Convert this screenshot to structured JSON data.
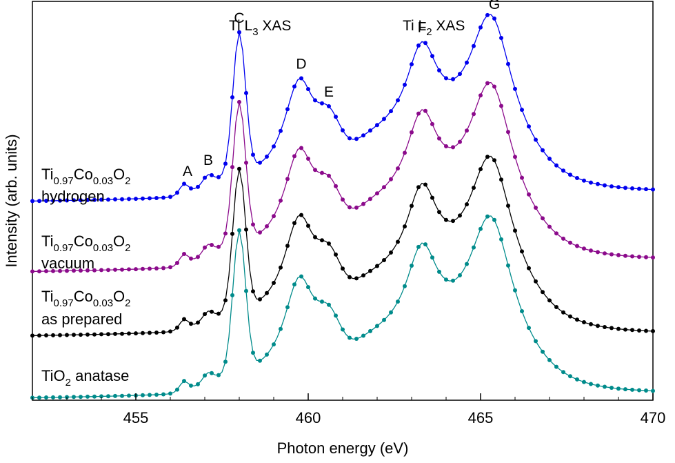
{
  "chart_data": {
    "type": "line",
    "xlabel": "Photon energy (eV)",
    "ylabel": "Intensity (arb. units)",
    "xlim": [
      452,
      470
    ],
    "xticks": [
      455,
      460,
      465,
      470
    ],
    "y_ticks_labeled": false,
    "grid": false,
    "colors": {
      "hydrogen": "#0000ee",
      "vacuum": "#8b0a8b",
      "as_prepared": "#000000",
      "anatase": "#008b8b"
    },
    "annotations": [
      {
        "text": "A",
        "x": 456.5
      },
      {
        "text": "B",
        "x": 457.1
      },
      {
        "text": "C",
        "x": 458.0
      },
      {
        "text": "D",
        "x": 459.8
      },
      {
        "text": "E",
        "x": 460.6
      },
      {
        "text": "F",
        "x": 463.3
      },
      {
        "text": "G",
        "x": 465.4
      }
    ],
    "header_annotations": [
      {
        "base": "Ti L",
        "sub": "3",
        "rest": " XAS"
      },
      {
        "base": "Ti L",
        "sub": "2",
        "rest": " XAS"
      }
    ],
    "series_labels": [
      {
        "key": "hydrogen",
        "line1": {
          "a": "Ti",
          "s1": "0.97",
          "b": "Co",
          "s2": "0.03",
          "c": "O",
          "s3": "2"
        },
        "line2": "hydrogen"
      },
      {
        "key": "vacuum",
        "line1": {
          "a": "Ti",
          "s1": "0.97",
          "b": "Co",
          "s2": "0.03",
          "c": "O",
          "s3": "2"
        },
        "line2": "vacuum"
      },
      {
        "key": "as_prepared",
        "line1": {
          "a": "Ti",
          "s1": "0.97",
          "b": "Co",
          "s2": "0.03",
          "c": "O",
          "s3": "2"
        },
        "line2": "as prepared"
      },
      {
        "key": "anatase",
        "line1": {
          "a": "TiO",
          "s1": "2",
          "b": " anatase"
        }
      }
    ],
    "series": [
      {
        "key": "hydrogen",
        "offset": 2.85,
        "edge_scale": 1.15
      },
      {
        "key": "vacuum",
        "offset": 1.83,
        "edge_scale": 1.2
      },
      {
        "key": "as_prepared",
        "offset": 0.9,
        "edge_scale": 1.0
      },
      {
        "key": "anatase",
        "offset": 0.0,
        "edge_scale": 1.05
      }
    ]
  }
}
